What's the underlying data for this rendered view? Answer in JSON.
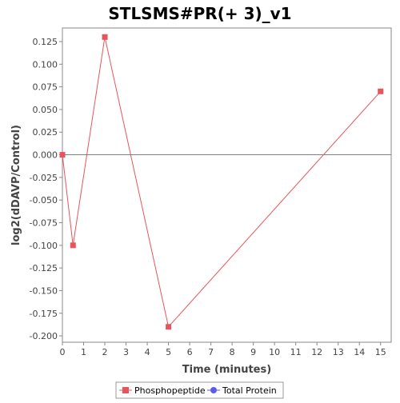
{
  "chart_data": {
    "type": "line",
    "title": "STLSMS#PR(+ 3)_v1",
    "xlabel": "Time (minutes)",
    "ylabel": "log2(dDAVP/Control)",
    "xlim": [
      0,
      15.5
    ],
    "ylim": [
      -0.207,
      0.14
    ],
    "x_ticks": [
      0,
      1,
      2,
      3,
      4,
      5,
      6,
      7,
      8,
      9,
      10,
      11,
      12,
      13,
      14,
      15
    ],
    "y_ticks": [
      -0.2,
      -0.175,
      -0.15,
      -0.125,
      -0.1,
      -0.075,
      -0.05,
      -0.025,
      0.0,
      0.025,
      0.05,
      0.075,
      0.1,
      0.125
    ],
    "y_tick_labels": [
      "-0.200",
      "-0.175",
      "-0.150",
      "-0.125",
      "-0.100",
      "-0.075",
      "-0.050",
      "-0.025",
      "0.000",
      "0.025",
      "0.050",
      "0.075",
      "0.100",
      "0.125"
    ],
    "zero_line": true,
    "grid": false,
    "legend_position": "bottom",
    "series": [
      {
        "name": "Phosphopeptide",
        "color": "#e8545a",
        "marker": "square",
        "x": [
          0,
          0.5,
          2,
          5,
          15
        ],
        "y": [
          0.0,
          -0.1,
          0.13,
          -0.19,
          0.07
        ]
      },
      {
        "name": "Total Protein",
        "color": "#5a5aee",
        "marker": "circle",
        "x": [],
        "y": []
      }
    ]
  }
}
